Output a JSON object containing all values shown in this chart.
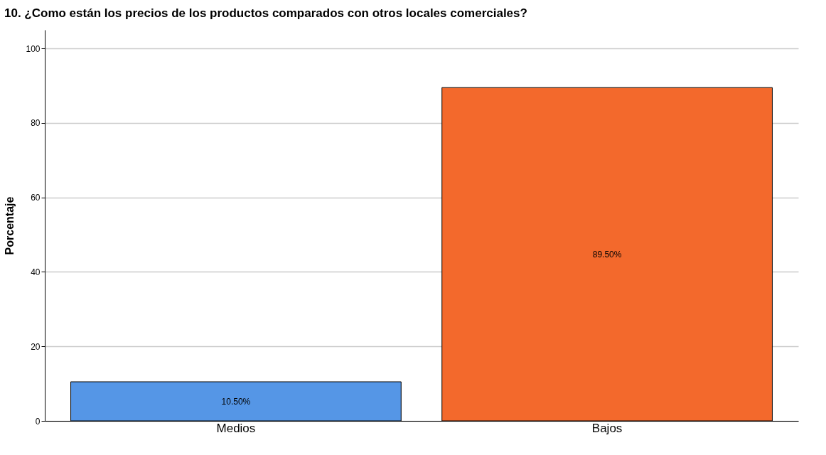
{
  "chart_data": {
    "type": "bar",
    "title": "10. ¿Como están los precios de los productos comparados con otros locales comerciales?",
    "ylabel": "Porcentaje",
    "categories": [
      "Medios",
      "Bajos"
    ],
    "values": [
      10.5,
      89.5
    ],
    "colors": [
      "#5596e6",
      "#f3692c"
    ],
    "value_labels": [
      "10.50%",
      "89.50%"
    ],
    "ylim": [
      0,
      105
    ],
    "yticks": [
      0,
      20,
      40,
      60,
      80,
      100
    ],
    "grid": "y",
    "legend": false
  }
}
